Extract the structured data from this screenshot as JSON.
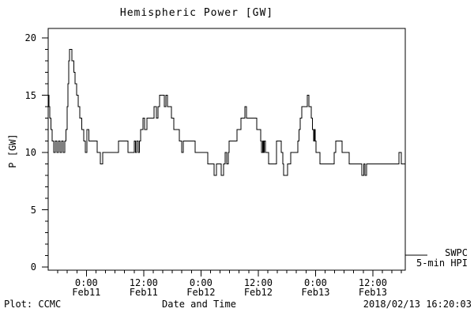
{
  "title": "Hemispheric Power [GW]",
  "legend": {
    "label_top": "SWPC",
    "label_bottom": "5-min HPI"
  },
  "footer": {
    "left": "Plot: CCMC",
    "right": "2018/02/13 16:20:03"
  },
  "colors": {
    "foreground": "#000000",
    "background": "#ffffff"
  },
  "chart_data": {
    "type": "line",
    "step": true,
    "title": "Hemispheric Power [GW]",
    "xlabel": "Date and Time",
    "ylabel": "P [GW]",
    "unit": "GW",
    "series_name": "SWPC 5-min HPI",
    "ylim": [
      0,
      20
    ],
    "y_major_ticks": [
      0,
      5,
      10,
      15,
      20
    ],
    "y_minor_step": 1,
    "x_range_hours": [
      0,
      74.8
    ],
    "x_minor_step_hours": 2,
    "x_major_ticks": [
      {
        "hour": 8,
        "time": "0:00",
        "date": "Feb11"
      },
      {
        "hour": 20,
        "time": "12:00",
        "date": "Feb11"
      },
      {
        "hour": 32,
        "time": "0:00",
        "date": "Feb12"
      },
      {
        "hour": 44,
        "time": "12:00",
        "date": "Feb12"
      },
      {
        "hour": 56,
        "time": "0:00",
        "date": "Feb13"
      },
      {
        "hour": 68,
        "time": "12:00",
        "date": "Feb13"
      }
    ],
    "points": [
      [
        0,
        15
      ],
      [
        0.17,
        14
      ],
      [
        0.33,
        13
      ],
      [
        0.58,
        12
      ],
      [
        0.83,
        11
      ],
      [
        1.16,
        10
      ],
      [
        1.49,
        11
      ],
      [
        1.82,
        10
      ],
      [
        2.15,
        11
      ],
      [
        2.48,
        10
      ],
      [
        2.81,
        11
      ],
      [
        3.14,
        10
      ],
      [
        3.48,
        11
      ],
      [
        3.72,
        12
      ],
      [
        3.97,
        14
      ],
      [
        4.14,
        16
      ],
      [
        4.3,
        18
      ],
      [
        4.47,
        19
      ],
      [
        4.97,
        18
      ],
      [
        5.38,
        17
      ],
      [
        5.63,
        16
      ],
      [
        5.96,
        15
      ],
      [
        6.29,
        14
      ],
      [
        6.62,
        13
      ],
      [
        7.03,
        12
      ],
      [
        7.45,
        11
      ],
      [
        7.78,
        10
      ],
      [
        8.11,
        12
      ],
      [
        8.52,
        11
      ],
      [
        10.26,
        10
      ],
      [
        10.92,
        9
      ],
      [
        11.42,
        10
      ],
      [
        14.73,
        11
      ],
      [
        16.72,
        10
      ],
      [
        18.04,
        11
      ],
      [
        18.29,
        10
      ],
      [
        18.54,
        11
      ],
      [
        18.87,
        10
      ],
      [
        19.11,
        11
      ],
      [
        19.36,
        12
      ],
      [
        19.86,
        13
      ],
      [
        20.19,
        12
      ],
      [
        20.69,
        13
      ],
      [
        22.18,
        14
      ],
      [
        22.67,
        13
      ],
      [
        23,
        14
      ],
      [
        23.33,
        15
      ],
      [
        24.33,
        14
      ],
      [
        24.66,
        15
      ],
      [
        24.99,
        14
      ],
      [
        25.82,
        13
      ],
      [
        26.31,
        12
      ],
      [
        27.47,
        11
      ],
      [
        27.97,
        10
      ],
      [
        28.3,
        11
      ],
      [
        30.78,
        10
      ],
      [
        33.43,
        9
      ],
      [
        34.75,
        8
      ],
      [
        35.25,
        9
      ],
      [
        36.24,
        8
      ],
      [
        36.74,
        9
      ],
      [
        37.07,
        10
      ],
      [
        37.4,
        9
      ],
      [
        37.73,
        10
      ],
      [
        37.9,
        11
      ],
      [
        39.55,
        12
      ],
      [
        40.38,
        13
      ],
      [
        41.21,
        14
      ],
      [
        41.54,
        13
      ],
      [
        43.69,
        12
      ],
      [
        44.52,
        11
      ],
      [
        44.7,
        10
      ],
      [
        44.9,
        11
      ],
      [
        45.1,
        10
      ],
      [
        45.3,
        11
      ],
      [
        45.5,
        10
      ],
      [
        46.17,
        9
      ],
      [
        47.83,
        11
      ],
      [
        48.82,
        10
      ],
      [
        49.15,
        9
      ],
      [
        49.32,
        8
      ],
      [
        50.15,
        9
      ],
      [
        50.81,
        10
      ],
      [
        52.3,
        11
      ],
      [
        52.55,
        12
      ],
      [
        52.8,
        13
      ],
      [
        53.13,
        14
      ],
      [
        54.29,
        15
      ],
      [
        54.62,
        14
      ],
      [
        55.11,
        13
      ],
      [
        55.36,
        12
      ],
      [
        55.61,
        11
      ],
      [
        55.77,
        12
      ],
      [
        55.94,
        11
      ],
      [
        56.1,
        10
      ],
      [
        56.93,
        9
      ],
      [
        59.91,
        10
      ],
      [
        60.24,
        11
      ],
      [
        61.56,
        10
      ],
      [
        63.05,
        9
      ],
      [
        65.7,
        8
      ],
      [
        66.11,
        9
      ],
      [
        66.36,
        8
      ],
      [
        66.69,
        9
      ],
      [
        73.47,
        10
      ],
      [
        73.97,
        9
      ]
    ]
  }
}
